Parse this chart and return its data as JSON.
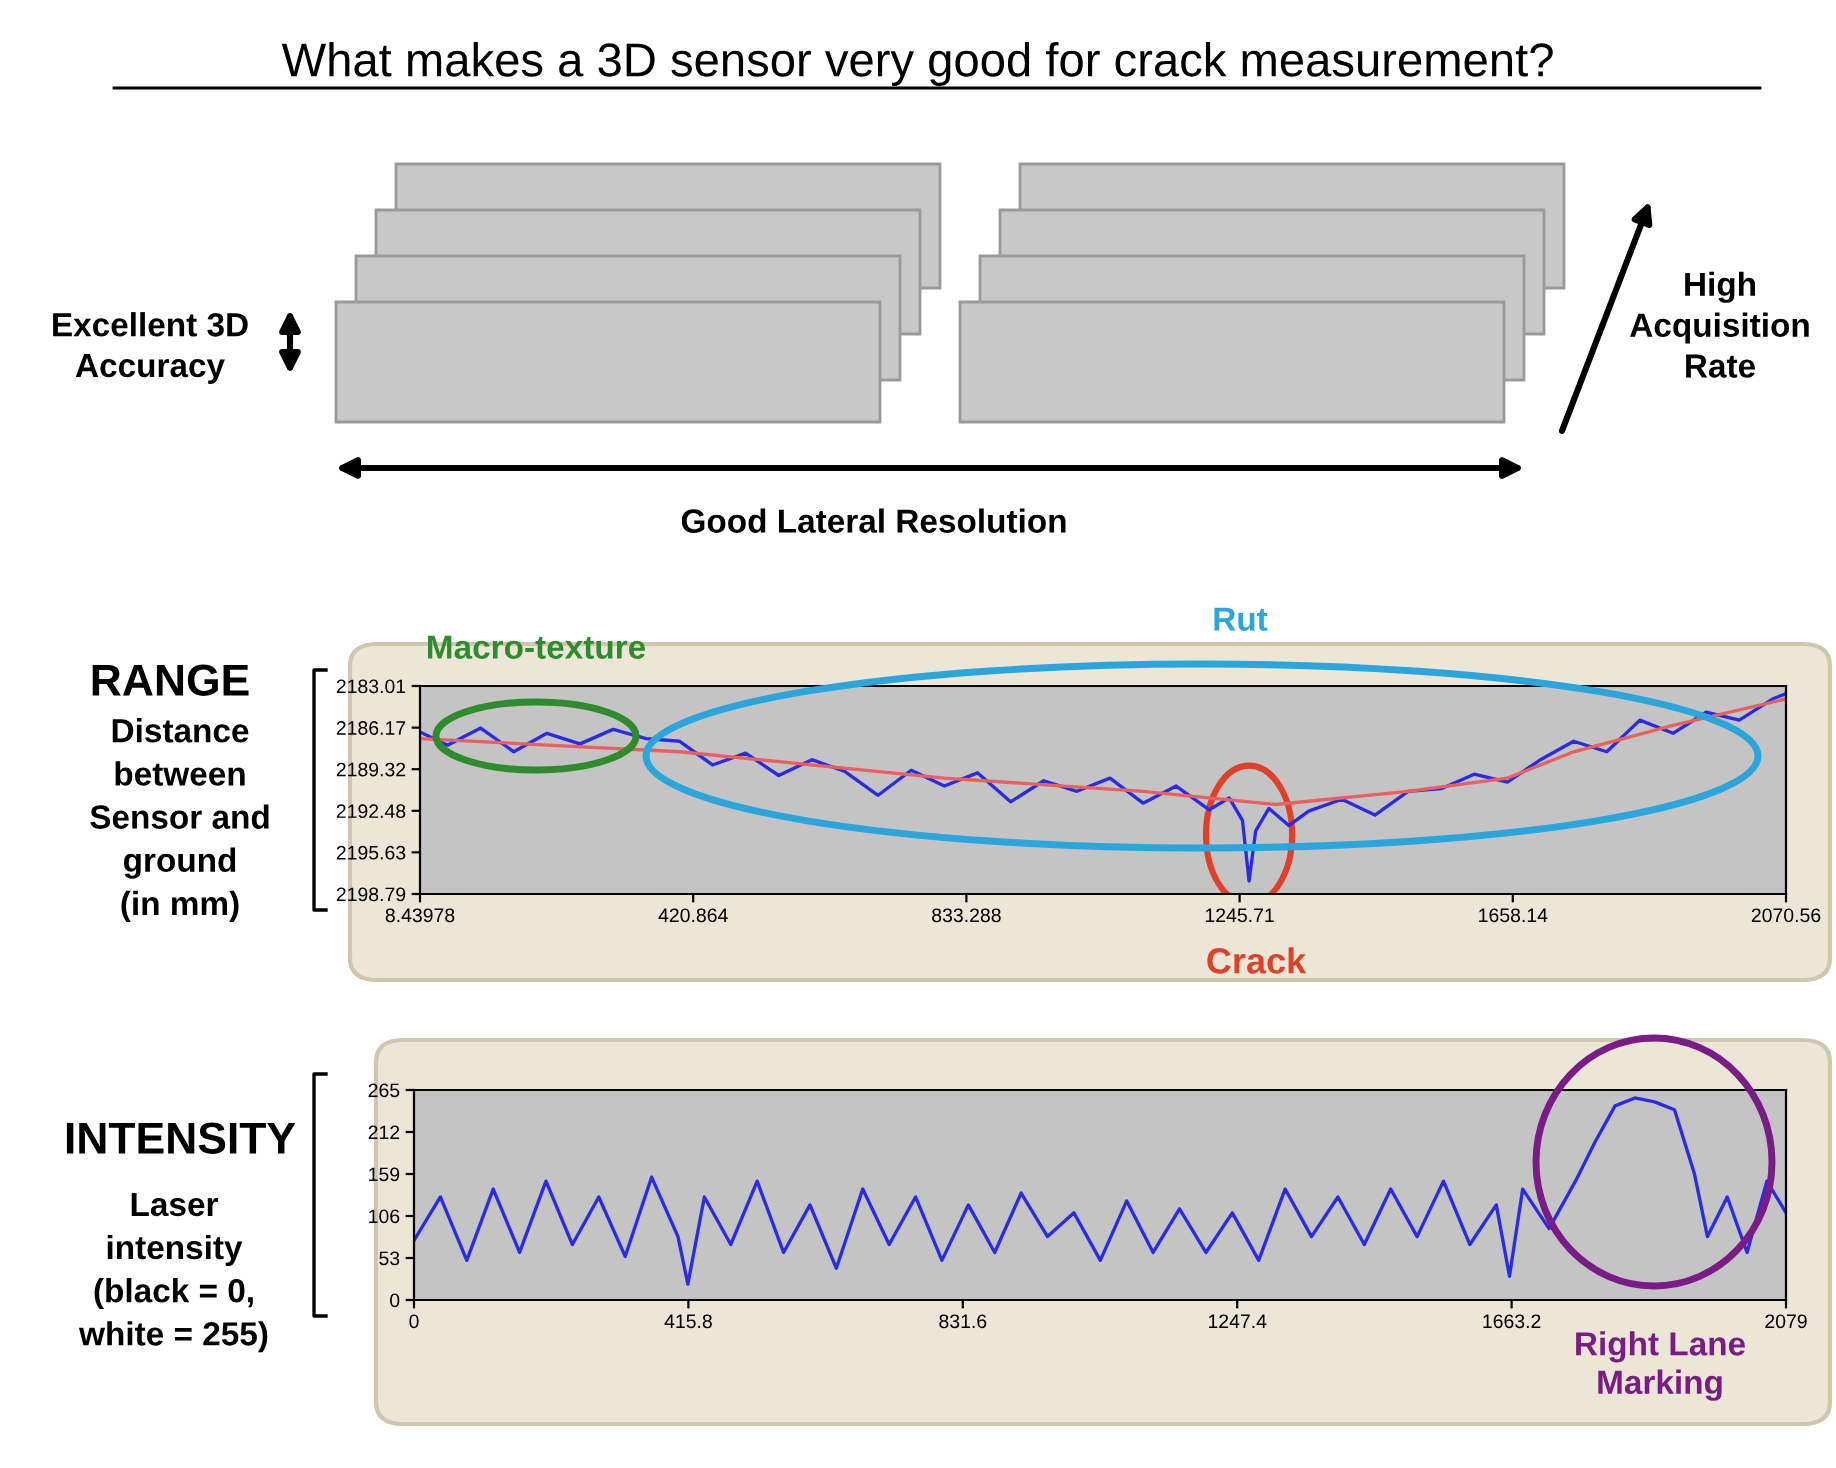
{
  "chart_data": [
    {
      "type": "other",
      "title": "What makes a 3D sensor very good for crack measurement?",
      "annotations": [
        "Excellent 3D Accuracy",
        "High Acquisition Rate",
        "Good Lateral Resolution"
      ]
    },
    {
      "type": "line",
      "title": "RANGE",
      "ylabel": "Distance\nbetween\nSensor and\nground\n(in mm)",
      "xlim": [
        8.43978,
        2070.56
      ],
      "xticks": [
        8.43978,
        420.864,
        833.288,
        1245.71,
        1658.14,
        2070.56
      ],
      "ylim": [
        2198.79,
        2183.01
      ],
      "yticks": [
        2183.01,
        {
          "value": 2186.17,
          "label": "2186.17"
        },
        2189.32,
        2192.48,
        2195.63,
        2198.79
      ],
      "series": [
        {
          "color": "#2b2be6",
          "x": [
            8.44,
            50,
            100,
            150,
            200,
            250,
            300,
            350,
            400,
            450,
            500,
            550,
            600,
            650,
            700,
            750,
            800,
            850,
            900,
            950,
            1000,
            1050,
            1100,
            1150,
            1200,
            1230,
            1250,
            1260,
            1270,
            1290,
            1320,
            1350,
            1400,
            1450,
            1500,
            1550,
            1600,
            1650,
            1700,
            1750,
            1800,
            1850,
            1900,
            1950,
            2000,
            2050,
            2070
          ],
          "values": [
            2186.5,
            2187.5,
            2186.2,
            2188.0,
            2186.6,
            2187.4,
            2186.3,
            2187.0,
            2187.2,
            2189.0,
            2188.1,
            2189.8,
            2188.6,
            2189.5,
            2191.3,
            2189.4,
            2190.6,
            2189.6,
            2191.8,
            2190.2,
            2191.0,
            2190.0,
            2191.9,
            2190.6,
            2192.4,
            2191.5,
            2193.2,
            2197.8,
            2194.0,
            2192.3,
            2193.6,
            2192.5,
            2191.6,
            2192.8,
            2191.0,
            2190.8,
            2189.7,
            2190.3,
            2188.6,
            2187.2,
            2188.0,
            2185.6,
            2186.6,
            2185.0,
            2185.6,
            2184.0,
            2183.6
          ]
        },
        {
          "color": "#e86060",
          "x": [
            8.44,
            400,
            800,
            1100,
            1300,
            1500,
            1650,
            1750,
            1900,
            2070
          ],
          "values": [
            2187.0,
            2188.0,
            2190.0,
            2191.0,
            2192.0,
            2191.0,
            2190.0,
            2188.0,
            2186.0,
            2184.0
          ]
        }
      ],
      "annotations": [
        "Macro-texture",
        "Rut",
        {
          "text": "Crack",
          "x": 1260,
          "y": 2197.8
        }
      ],
      "grid": false,
      "legend": false
    },
    {
      "type": "line",
      "title": "INTENSITY",
      "ylabel": "Laser\nintensity\n(black = 0,\nwhite = 255)",
      "xlim": [
        0,
        2079
      ],
      "xticks": [
        0,
        415.8,
        831.6,
        1247.4,
        1663.2,
        2079
      ],
      "ylim": [
        0,
        265
      ],
      "yticks": [
        0,
        53,
        106,
        159,
        212,
        265
      ],
      "series": [
        {
          "color": "#2b2be6",
          "x": [
            0,
            40,
            80,
            120,
            160,
            200,
            240,
            280,
            320,
            360,
            400,
            415,
            440,
            480,
            520,
            560,
            600,
            640,
            680,
            720,
            760,
            800,
            840,
            880,
            920,
            960,
            1000,
            1040,
            1080,
            1120,
            1160,
            1200,
            1240,
            1280,
            1320,
            1360,
            1400,
            1440,
            1480,
            1520,
            1560,
            1600,
            1640,
            1660,
            1680,
            1720,
            1760,
            1790,
            1820,
            1850,
            1880,
            1910,
            1940,
            1960,
            1990,
            2020,
            2050,
            2079
          ],
          "values": [
            75,
            130,
            50,
            140,
            60,
            150,
            70,
            130,
            55,
            155,
            80,
            20,
            130,
            70,
            150,
            60,
            120,
            40,
            140,
            70,
            130,
            50,
            120,
            60,
            135,
            80,
            110,
            50,
            125,
            60,
            115,
            60,
            110,
            50,
            140,
            80,
            130,
            70,
            140,
            80,
            150,
            70,
            120,
            30,
            140,
            90,
            150,
            200,
            245,
            255,
            250,
            240,
            160,
            80,
            130,
            60,
            150,
            110
          ]
        }
      ],
      "annotations": [
        "Right Lane Marking"
      ],
      "grid": false,
      "legend": false
    }
  ]
}
